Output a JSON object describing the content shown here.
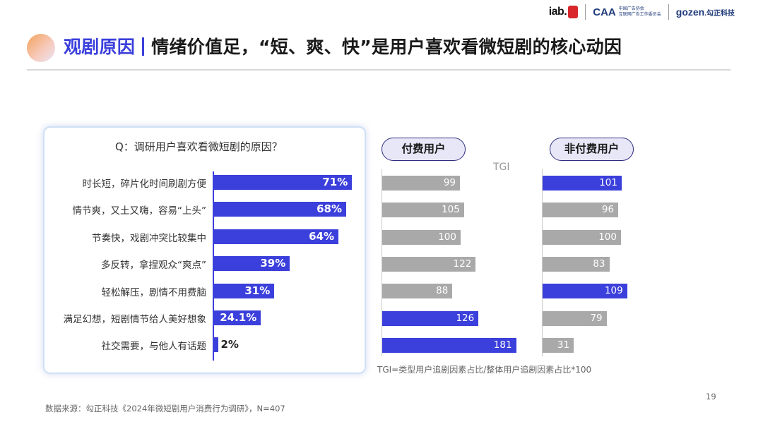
{
  "logos": {
    "iab": "iab.",
    "caa_mark": "CAA",
    "caa_line1": "中国广告协会",
    "caa_line2": "互联网广告工作委员会",
    "gozen": "gozen",
    "gozen_cn": ".勾正科技"
  },
  "title": {
    "accent": "观剧原因",
    "main": "情绪价值足，“短、爽、快”是用户喜欢看微短剧的核心动因"
  },
  "question": "Q：调研用户喜欢看微短剧的原因？",
  "chart_data": [
    {
      "type": "bar",
      "title": "Q：调研用户喜欢看微短剧的原因？",
      "categories": [
        "时长短，碎片化时间刷剧方便",
        "情节爽，又土又嗨，容易“上头”",
        "节奏快，戏剧冲突比较集中",
        "多反转，拿捏观众“爽点”",
        "轻松解压，剧情不用费脑",
        "满足幻想，短剧情节给人美好想象",
        "社交需要，与他人有话题"
      ],
      "values": [
        71,
        68,
        64,
        39,
        31,
        24.1,
        2
      ],
      "value_labels": [
        "71%",
        "68%",
        "64%",
        "39%",
        "31%",
        "24.1%",
        "2%"
      ],
      "xlim": [
        0,
        100
      ]
    },
    {
      "type": "bar",
      "title": "付费用户",
      "xlabel": "TGI",
      "categories": [
        "时长短，碎片化时间刷剧方便",
        "情节爽，又土又嗨，容易“上头”",
        "节奏快，戏剧冲突比较集中",
        "多反转，拿捏观众“爽点”",
        "轻松解压，剧情不用费脑",
        "满足幻想，短剧情节给人美好想象",
        "社交需要，与他人有话题"
      ],
      "values": [
        99,
        105,
        100,
        122,
        88,
        126,
        181
      ],
      "highlight": [
        false,
        false,
        false,
        false,
        false,
        true,
        true
      ]
    },
    {
      "type": "bar",
      "title": "非付费用户",
      "xlabel": "TGI",
      "categories": [
        "时长短，碎片化时间刷剧方便",
        "情节爽，又土又嗨，容易“上头”",
        "节奏快，戏剧冲突比较集中",
        "多反转，拿捏观众“爽点”",
        "轻松解压，剧情不用费脑",
        "满足幻想，短剧情节给人美好想象",
        "社交需要，与他人有话题"
      ],
      "values": [
        101,
        96,
        100,
        83,
        109,
        79,
        31
      ],
      "highlight": [
        true,
        false,
        false,
        false,
        true,
        false,
        false
      ]
    }
  ],
  "colors": {
    "accent": "#3b3fdb",
    "neutral": "#a9a9a9",
    "pill_fill": "#e7e7f8"
  },
  "tgi_label": "TGI",
  "tgi_note": "TGI=类型用户追剧因素占比/整体用户追剧因素占比*100",
  "footer": "数据来源：勾正科技《2024年微短剧用户消费行为调研》，N=407",
  "page_number": "19"
}
